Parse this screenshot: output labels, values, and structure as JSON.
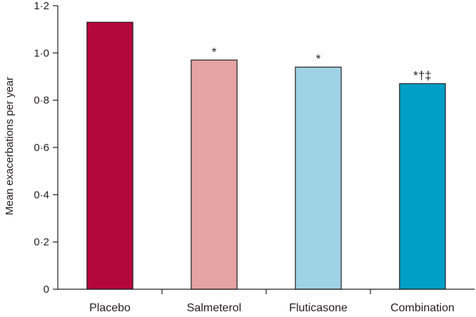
{
  "chart_data": {
    "type": "bar",
    "title": "",
    "xlabel": "",
    "ylabel": "Mean exacerbations per year",
    "ylim": [
      0,
      1.2
    ],
    "yticks": [
      "0",
      "0·2",
      "0·4",
      "0·6",
      "0·8",
      "1·0",
      "1·2"
    ],
    "ytick_values": [
      0,
      0.2,
      0.4,
      0.6,
      0.8,
      1.0,
      1.2
    ],
    "categories": [
      "Placebo",
      "Salmeterol",
      "Fluticasone",
      "Combination"
    ],
    "values": [
      1.13,
      0.97,
      0.94,
      0.87
    ],
    "annotations": [
      "",
      "*",
      "*",
      "*†‡"
    ],
    "colors": [
      "#b5083a",
      "#e3a4a2",
      "#9fd2e4",
      "#00a0c6"
    ],
    "grid": false,
    "legend": "none"
  }
}
